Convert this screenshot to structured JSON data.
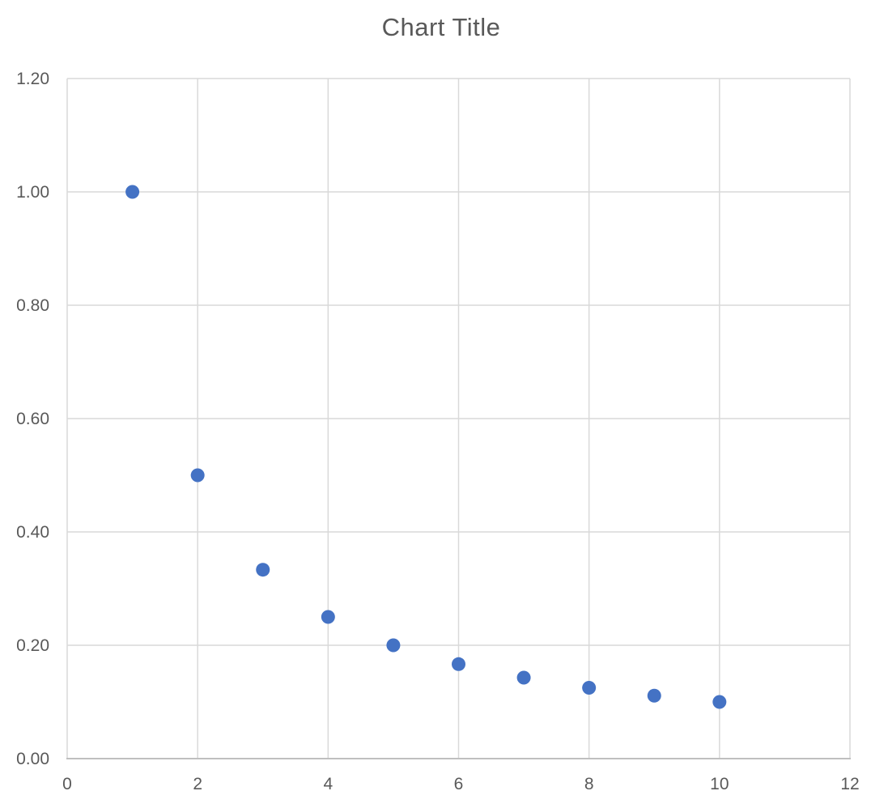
{
  "title": "Chart Title",
  "colors": {
    "marker": "#4472C4",
    "gridline": "#D9D9D9",
    "axis_line": "#BFBFBF",
    "text": "#595959",
    "background": "#FFFFFF"
  },
  "chart_data": {
    "type": "scatter",
    "title": "Chart Title",
    "x": [
      1,
      2,
      3,
      4,
      5,
      6,
      7,
      8,
      9,
      10
    ],
    "y": [
      1.0,
      0.5,
      0.3333,
      0.25,
      0.2,
      0.1667,
      0.1429,
      0.125,
      0.1111,
      0.1
    ],
    "xlabel": "",
    "ylabel": "",
    "xlim": [
      0,
      12
    ],
    "ylim": [
      0,
      1.2
    ],
    "x_ticks": [
      0,
      2,
      4,
      6,
      8,
      10,
      12
    ],
    "y_ticks": [
      0,
      0.2,
      0.4,
      0.6,
      0.8,
      1.0,
      1.2
    ],
    "x_tick_labels": [
      "0",
      "2",
      "4",
      "6",
      "8",
      "10",
      "12"
    ],
    "y_tick_labels": [
      "0.00",
      "0.20",
      "0.40",
      "0.60",
      "0.80",
      "1.00",
      "1.20"
    ],
    "grid": true,
    "legend": "none",
    "marker_color": "#4472C4",
    "marker_radius": 8.5
  }
}
